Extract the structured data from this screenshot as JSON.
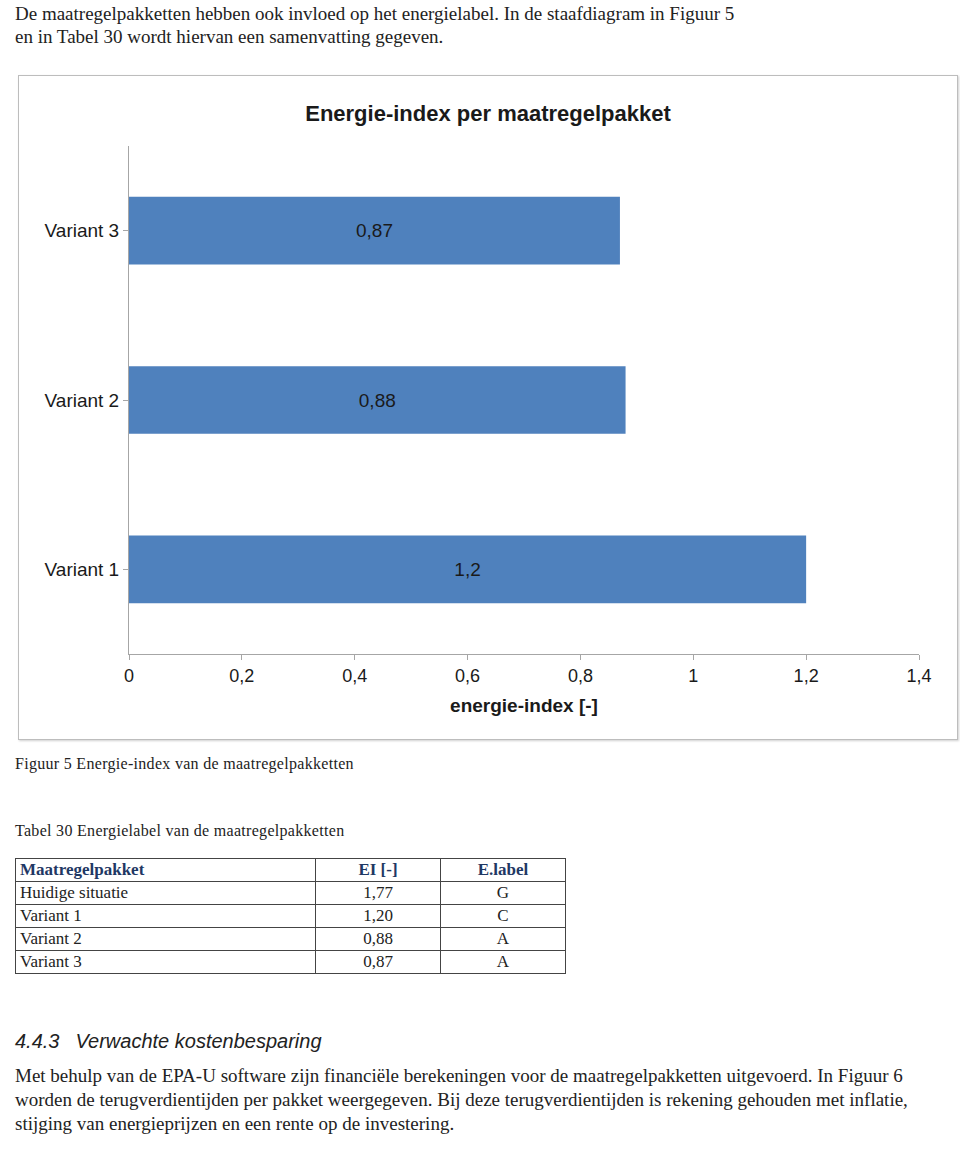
{
  "intro": "De maatregelpakketten hebben ook invloed op het energielabel. In de staafdiagram in Figuur 5 en in Tabel 30 wordt hiervan een samenvatting gegeven.",
  "chart_data": {
    "type": "bar",
    "orientation": "horizontal",
    "title": "Energie-index per maatregelpakket",
    "x_label": "energie-index [-]",
    "categories": [
      "Variant 1",
      "Variant 2",
      "Variant 3"
    ],
    "values": [
      1.2,
      0.88,
      0.87
    ],
    "value_labels": [
      "1,2",
      "0,88",
      "0,87"
    ],
    "data_labels": true,
    "color": "#4f81bd",
    "xlim": [
      0,
      1.4
    ],
    "xticks": [
      0,
      {
        "value": 0.2,
        "label": "0,2"
      },
      {
        "value": 0.4,
        "label": "0,4"
      },
      {
        "value": 0.6,
        "label": "0,6"
      },
      {
        "value": 0.8,
        "label": "0,8"
      },
      1,
      {
        "value": 1.2,
        "label": "1,2"
      },
      {
        "value": 1.4,
        "label": "1,4"
      }
    ],
    "grid": false
  },
  "figure_caption": "Figuur 5  Energie-index van de maatregelpakketten",
  "table_caption": "Tabel 30  Energielabel van de maatregelpakketten",
  "table": {
    "header": [
      "Maatregelpakket",
      "EI [-]",
      "E.label"
    ],
    "rows": [
      [
        "Huidige situatie",
        "1,77",
        "G"
      ],
      [
        "Variant 1",
        "1,20",
        "C"
      ],
      [
        "Variant 2",
        "0,88",
        "A"
      ],
      [
        "Variant 3",
        "0,87",
        "A"
      ]
    ]
  },
  "section": {
    "number": "4.4.3",
    "title": "Verwachte kostenbesparing",
    "paragraph": "Met behulp van de EPA-U software zijn financiële berekeningen voor de maatregelpakketten uitgevoerd. In Figuur 6 worden de terugverdientijden per pakket weergegeven. Bij deze terugverdientijden is rekening gehouden met inflatie, stijging van energieprijzen en een rente op de investering."
  }
}
